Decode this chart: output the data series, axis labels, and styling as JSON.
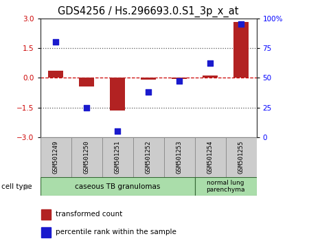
{
  "title": "GDS4256 / Hs.296693.0.S1_3p_x_at",
  "samples": [
    "GSM501249",
    "GSM501250",
    "GSM501251",
    "GSM501252",
    "GSM501253",
    "GSM501254",
    "GSM501255"
  ],
  "transformed_count": [
    0.35,
    -0.45,
    -1.65,
    -0.08,
    -0.05,
    0.12,
    2.8
  ],
  "percentile_rank": [
    80,
    25,
    5,
    38,
    47,
    62,
    95
  ],
  "ylim_left": [
    -3,
    3
  ],
  "ylim_right": [
    0,
    100
  ],
  "yticks_left": [
    -3,
    -1.5,
    0,
    1.5,
    3
  ],
  "yticks_right": [
    0,
    25,
    50,
    75,
    100
  ],
  "hlines": [
    1.5,
    -1.5
  ],
  "bar_color": "#b22222",
  "dot_color": "#1a1acd",
  "zero_line_color": "#cc0000",
  "dotted_line_color": "#555555",
  "cell_type_groups": [
    {
      "label": "caseous TB granulomas",
      "n_samples": 5,
      "color": "#aaddaa"
    },
    {
      "label": "normal lung\nparenchyma",
      "n_samples": 2,
      "color": "#aaddaa"
    }
  ],
  "cell_type_label": "cell type",
  "legend_items": [
    {
      "color": "#b22222",
      "label": "transformed count"
    },
    {
      "color": "#1a1acd",
      "label": "percentile rank within the sample"
    }
  ],
  "bar_width": 0.5,
  "dot_size": 40,
  "tick_label_fontsize": 7.5,
  "title_fontsize": 10.5
}
